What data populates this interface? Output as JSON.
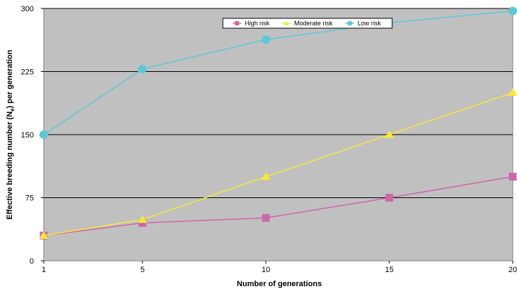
{
  "chart_data": {
    "type": "line",
    "x": [
      1,
      5,
      10,
      15,
      20
    ],
    "xticks": [
      "1",
      "5",
      "10",
      "15",
      "20"
    ],
    "yticks": [
      "0",
      "75",
      "150",
      "225",
      "300"
    ],
    "xlim": [
      1,
      20
    ],
    "ylim": [
      0,
      300
    ],
    "xlabel": "Number of generations",
    "ylabel_main": "Effective breeding number (N",
    "ylabel_sub": "e",
    "ylabel_end": ") per generation",
    "grid": "horizontal",
    "legend_position": "top",
    "series": [
      {
        "name": "High risk",
        "color": "#CC66AA",
        "marker": "square",
        "values": [
          30,
          45,
          51,
          75,
          100
        ]
      },
      {
        "name": "Moderate risk",
        "color": "#F5E83A",
        "marker": "triangle",
        "values": [
          30,
          49,
          100,
          150,
          200
        ]
      },
      {
        "name": "Low risk",
        "color": "#5BC8D8",
        "marker": "circle",
        "values": [
          150,
          228,
          263,
          283,
          297
        ]
      }
    ],
    "plot_background": "#C0C0C0"
  }
}
